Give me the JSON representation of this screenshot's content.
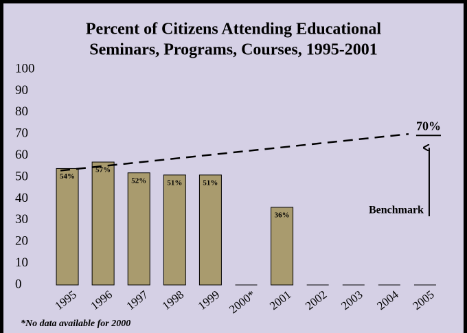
{
  "chart_data": {
    "type": "bar",
    "title": [
      "Percent of Citizens Attending Educational",
      "Seminars, Programs, Courses, 1995-2001"
    ],
    "categories": [
      "1995",
      "1996",
      "1997",
      "1998",
      "1999",
      "2000*",
      "2001",
      "2002",
      "2003",
      "2004",
      "2005"
    ],
    "values": [
      54,
      57,
      52,
      51,
      51,
      null,
      36,
      null,
      null,
      null,
      null
    ],
    "value_labels": [
      "54%",
      "57%",
      "52%",
      "51%",
      "51%",
      null,
      "36%",
      null,
      null,
      null,
      null
    ],
    "color": "#a99b6e",
    "ylim": [
      0,
      100
    ],
    "yticks": [
      0,
      10,
      20,
      30,
      40,
      50,
      60,
      70,
      80,
      90,
      100
    ],
    "benchmark": {
      "value": 70,
      "label": "70%",
      "name": "Benchmark"
    },
    "footnote": "*No data available for 2000"
  }
}
